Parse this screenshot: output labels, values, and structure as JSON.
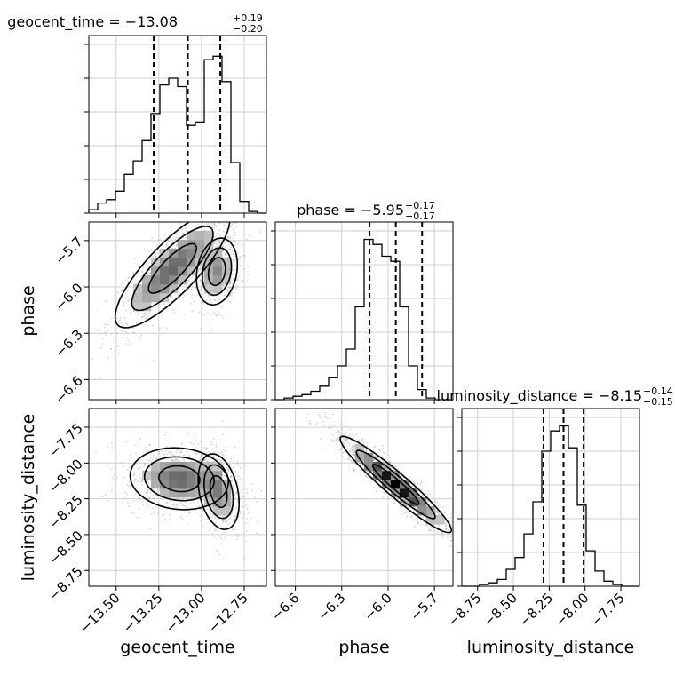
{
  "chart_data": {
    "type": "corner",
    "parameters": [
      "geocent_time",
      "phase",
      "luminosity_distance"
    ],
    "axis_labels": [
      "geocent_time",
      "phase",
      "luminosity_distance"
    ],
    "ranges": [
      [
        -13.66,
        -12.62
      ],
      [
        -6.73,
        -5.58
      ],
      [
        -8.86,
        -7.62
      ]
    ],
    "ticks": [
      {
        "values": [
          -13.5,
          -13.25,
          -13.0,
          -12.75
        ],
        "labels": [
          "−13.50",
          "−13.25",
          "−13.00",
          "−12.75"
        ]
      },
      {
        "values": [
          -6.6,
          -6.3,
          -6.0,
          -5.7
        ],
        "labels": [
          "−6.6",
          "−6.3",
          "−6.0",
          "−5.7"
        ]
      },
      {
        "values": [
          -8.75,
          -8.5,
          -8.25,
          -8.0,
          -7.75
        ],
        "labels": [
          "−8.75",
          "−8.50",
          "−8.25",
          "−8.00",
          "−7.75"
        ]
      }
    ],
    "titles": [
      {
        "text": "geocent_time = −13.08",
        "plus": "+0.19",
        "minus": "−0.20"
      },
      {
        "text": "phase = −5.95",
        "plus": "+0.17",
        "minus": "−0.17"
      },
      {
        "text": "luminosity_distance = −8.15",
        "plus": "+0.14",
        "minus": "−0.15"
      }
    ],
    "quantiles": [
      [
        -13.28,
        -13.08,
        -12.89
      ],
      [
        -6.12,
        -5.95,
        -5.78
      ],
      [
        -8.29,
        -8.15,
        -8.01
      ]
    ],
    "histograms": [
      {
        "param": "geocent_time",
        "counts": [
          0.02,
          0.06,
          0.08,
          0.13,
          0.23,
          0.31,
          0.43,
          0.59,
          0.76,
          0.8,
          0.75,
          0.52,
          0.54,
          0.91,
          0.93,
          0.78,
          0.3,
          0.07,
          0.01,
          0
        ]
      },
      {
        "param": "phase",
        "counts": [
          0,
          0.01,
          0.02,
          0.03,
          0.05,
          0.08,
          0.13,
          0.2,
          0.3,
          0.55,
          0.95,
          0.92,
          0.85,
          0.82,
          0.55,
          0.2,
          0.06,
          0.01,
          0,
          0
        ]
      },
      {
        "param": "luminosity_distance",
        "counts": [
          0,
          0,
          0.01,
          0.02,
          0.04,
          0.1,
          0.17,
          0.31,
          0.5,
          0.8,
          0.92,
          0.95,
          0.82,
          0.48,
          0.21,
          0.09,
          0.03,
          0.01,
          0,
          0
        ]
      }
    ],
    "density_blobs": [
      {
        "x": "geocent_time",
        "y": "phase",
        "components": [
          {
            "cx": -13.17,
            "cy": -5.88,
            "sx": 0.14,
            "sy": 0.16,
            "rho": 0.82,
            "w": 0.58
          },
          {
            "cx": -12.91,
            "cy": -5.9,
            "sx": 0.05,
            "sy": 0.09,
            "rho": 0.2,
            "w": 0.42
          }
        ]
      },
      {
        "x": "geocent_time",
        "y": "luminosity_distance",
        "components": [
          {
            "cx": -13.13,
            "cy": -8.11,
            "sx": 0.12,
            "sy": 0.09,
            "rho": -0.1,
            "w": 0.58
          },
          {
            "cx": -12.9,
            "cy": -8.2,
            "sx": 0.05,
            "sy": 0.11,
            "rho": -0.3,
            "w": 0.42
          }
        ]
      },
      {
        "x": "phase",
        "y": "luminosity_distance",
        "components": [
          {
            "cx": -5.95,
            "cy": -8.15,
            "sx": 0.15,
            "sy": 0.14,
            "rho": -0.95,
            "w": 1.0
          }
        ]
      }
    ],
    "grid": true
  }
}
